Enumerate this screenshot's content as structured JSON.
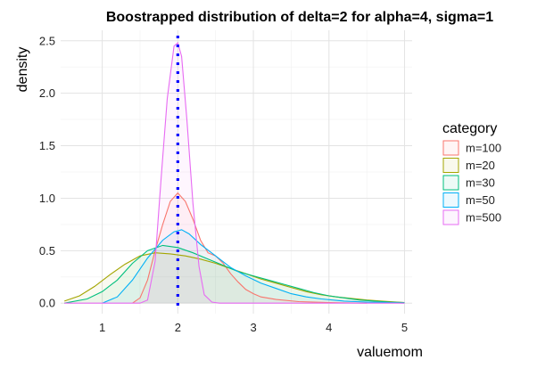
{
  "chart_data": {
    "type": "density",
    "title": "Boostrapped distribution of delta=2 for alpha=4, sigma=1",
    "xlabel": "valuemom",
    "ylabel": "density",
    "xlim": [
      0.45,
      5.1
    ],
    "ylim": [
      -0.1,
      2.6
    ],
    "xticks": [
      1,
      2,
      3,
      4,
      5
    ],
    "yticks": [
      0.0,
      0.5,
      1.0,
      1.5,
      2.0,
      2.5
    ],
    "ytick_labels": [
      "0.0",
      "0.5",
      "1.0",
      "1.5",
      "2.0",
      "2.5"
    ],
    "grid": true,
    "reference_line": {
      "x": 2,
      "color": "#0000ff",
      "style": "dotted"
    },
    "legend": {
      "title": "category",
      "position": "right"
    },
    "series": [
      {
        "name": "m=100",
        "color": "#f8766d",
        "points": [
          [
            1.4,
            0.0
          ],
          [
            1.5,
            0.05
          ],
          [
            1.6,
            0.22
          ],
          [
            1.7,
            0.5
          ],
          [
            1.8,
            0.75
          ],
          [
            1.9,
            0.97
          ],
          [
            2.0,
            1.05
          ],
          [
            2.1,
            0.97
          ],
          [
            2.2,
            0.8
          ],
          [
            2.3,
            0.6
          ],
          [
            2.4,
            0.48
          ],
          [
            2.5,
            0.45
          ],
          [
            2.6,
            0.38
          ],
          [
            2.7,
            0.28
          ],
          [
            2.8,
            0.2
          ],
          [
            2.9,
            0.13
          ],
          [
            3.0,
            0.09
          ],
          [
            3.1,
            0.06
          ],
          [
            3.3,
            0.035
          ],
          [
            3.6,
            0.015
          ],
          [
            4.0,
            0.005
          ],
          [
            4.5,
            0.0
          ]
        ]
      },
      {
        "name": "m=20",
        "color": "#a3a500",
        "points": [
          [
            0.5,
            0.02
          ],
          [
            0.7,
            0.07
          ],
          [
            0.9,
            0.16
          ],
          [
            1.1,
            0.27
          ],
          [
            1.3,
            0.37
          ],
          [
            1.5,
            0.45
          ],
          [
            1.7,
            0.48
          ],
          [
            1.9,
            0.47
          ],
          [
            2.1,
            0.45
          ],
          [
            2.3,
            0.42
          ],
          [
            2.5,
            0.38
          ],
          [
            2.7,
            0.33
          ],
          [
            2.9,
            0.28
          ],
          [
            3.1,
            0.23
          ],
          [
            3.3,
            0.19
          ],
          [
            3.5,
            0.15
          ],
          [
            3.7,
            0.11
          ],
          [
            3.9,
            0.08
          ],
          [
            4.1,
            0.06
          ],
          [
            4.3,
            0.045
          ],
          [
            4.5,
            0.03
          ],
          [
            4.7,
            0.02
          ],
          [
            4.9,
            0.01
          ],
          [
            5.0,
            0.005
          ]
        ]
      },
      {
        "name": "m=30",
        "color": "#00bf7d",
        "points": [
          [
            0.5,
            0.0
          ],
          [
            0.8,
            0.04
          ],
          [
            1.0,
            0.11
          ],
          [
            1.2,
            0.22
          ],
          [
            1.4,
            0.38
          ],
          [
            1.6,
            0.5
          ],
          [
            1.8,
            0.55
          ],
          [
            2.0,
            0.53
          ],
          [
            2.2,
            0.48
          ],
          [
            2.4,
            0.42
          ],
          [
            2.6,
            0.36
          ],
          [
            2.8,
            0.3
          ],
          [
            3.0,
            0.26
          ],
          [
            3.2,
            0.22
          ],
          [
            3.4,
            0.18
          ],
          [
            3.6,
            0.14
          ],
          [
            3.8,
            0.1
          ],
          [
            4.0,
            0.07
          ],
          [
            4.2,
            0.05
          ],
          [
            4.4,
            0.03
          ],
          [
            4.6,
            0.02
          ],
          [
            4.8,
            0.01
          ],
          [
            5.0,
            0.005
          ]
        ]
      },
      {
        "name": "m=50",
        "color": "#00b0f6",
        "points": [
          [
            1.0,
            0.0
          ],
          [
            1.2,
            0.06
          ],
          [
            1.4,
            0.22
          ],
          [
            1.6,
            0.43
          ],
          [
            1.8,
            0.6
          ],
          [
            1.95,
            0.68
          ],
          [
            2.05,
            0.7
          ],
          [
            2.15,
            0.66
          ],
          [
            2.3,
            0.56
          ],
          [
            2.5,
            0.45
          ],
          [
            2.7,
            0.34
          ],
          [
            2.9,
            0.26
          ],
          [
            3.1,
            0.19
          ],
          [
            3.3,
            0.14
          ],
          [
            3.5,
            0.09
          ],
          [
            3.7,
            0.06
          ],
          [
            3.9,
            0.04
          ],
          [
            4.2,
            0.02
          ],
          [
            4.5,
            0.01
          ],
          [
            4.8,
            0.005
          ],
          [
            5.0,
            0.0
          ]
        ]
      },
      {
        "name": "m=500",
        "color": "#e76bf3",
        "points": [
          [
            0.5,
            0.0
          ],
          [
            1.5,
            0.0
          ],
          [
            1.6,
            0.03
          ],
          [
            1.7,
            0.4
          ],
          [
            1.78,
            1.2
          ],
          [
            1.86,
            1.95
          ],
          [
            1.95,
            2.45
          ],
          [
            2.0,
            2.48
          ],
          [
            2.05,
            2.35
          ],
          [
            2.12,
            1.75
          ],
          [
            2.2,
            0.95
          ],
          [
            2.28,
            0.35
          ],
          [
            2.35,
            0.08
          ],
          [
            2.45,
            0.01
          ],
          [
            2.55,
            0.0
          ],
          [
            5.0,
            0.0
          ]
        ]
      }
    ]
  }
}
